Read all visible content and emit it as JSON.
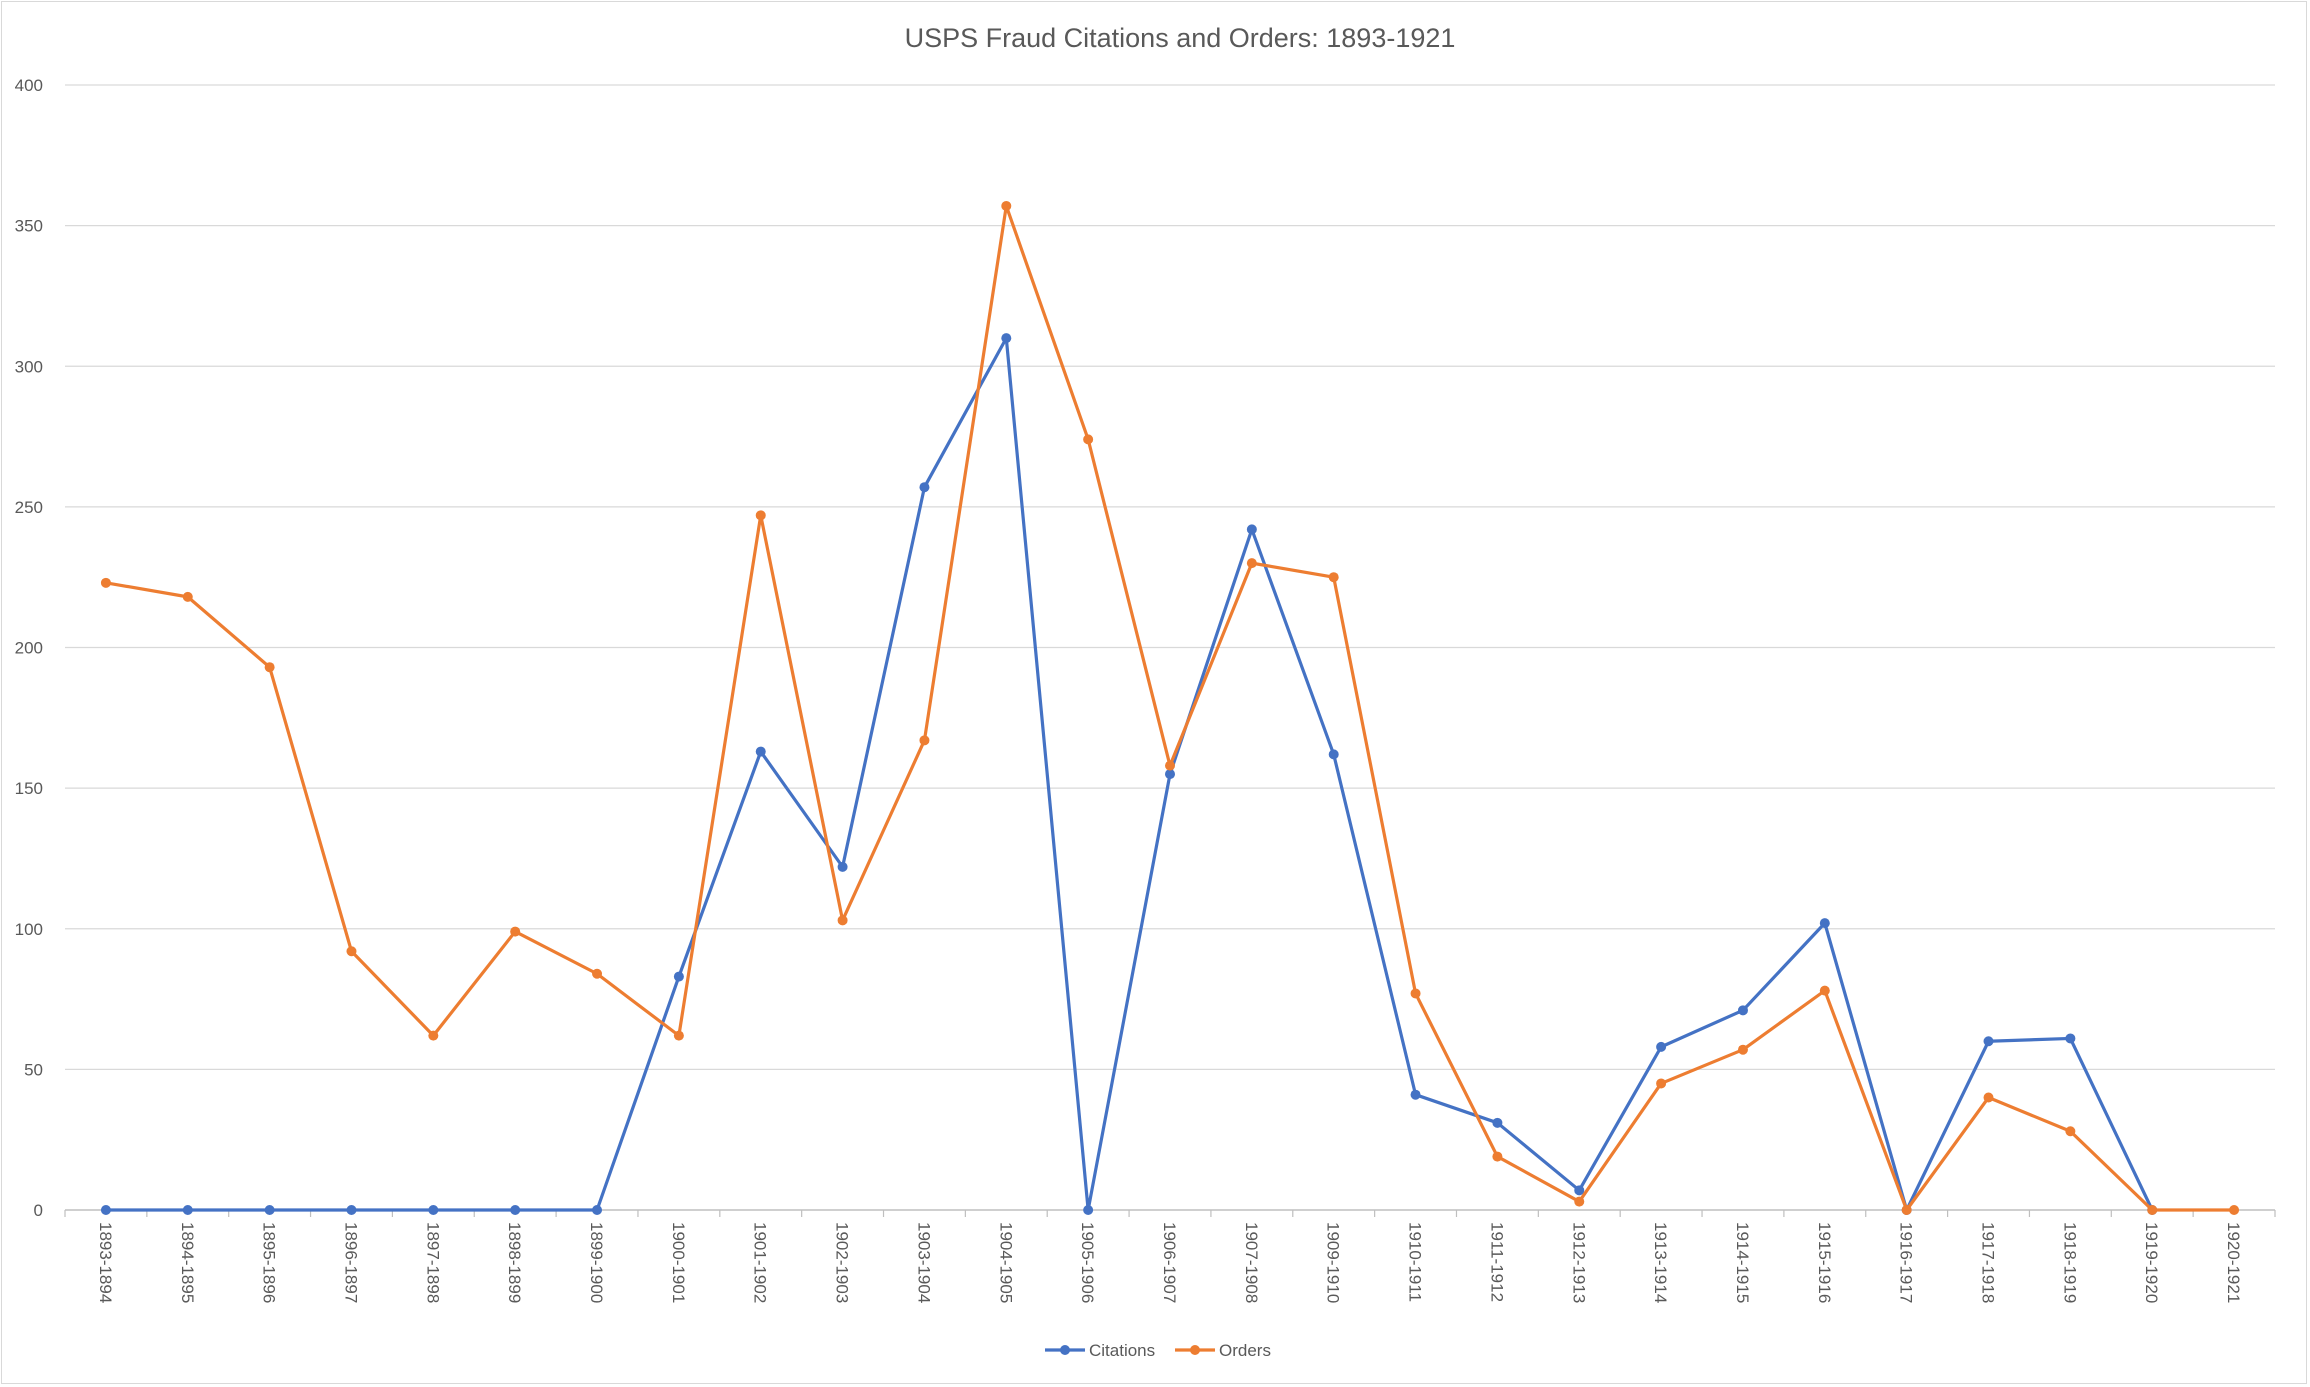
{
  "chart_data": {
    "type": "line",
    "title": "USPS Fraud Citations and Orders: 1893-1921",
    "xlabel": "",
    "ylabel": "",
    "ylim": [
      0,
      400
    ],
    "yticks": [
      "0",
      "50",
      "100",
      "150",
      "200",
      "250",
      "300",
      "350",
      "400"
    ],
    "categories": [
      "1893-1894",
      "1894-1895",
      "1895-1896",
      "1896-1897",
      "1897-1898",
      "1898-1899",
      "1899-1900",
      "1900-1901",
      "1901-1902",
      "1902-1903",
      "1903-1904",
      "1904-1905",
      "1905-1906",
      "1906-1907",
      "1907-1908",
      "1909-1910",
      "1910-1911",
      "1911-1912",
      "1912-1913",
      "1913-1914",
      "1914-1915",
      "1915-1916",
      "1916-1917",
      "1917-1918",
      "1918-1919",
      "1919-1920",
      "1920-1921"
    ],
    "series": [
      {
        "name": "Citations",
        "color": "#4472C4",
        "values": [
          0,
          0,
          0,
          0,
          0,
          0,
          0,
          83,
          163,
          122,
          257,
          310,
          0,
          155,
          242,
          162,
          41,
          31,
          7,
          58,
          71,
          102,
          0,
          60,
          61,
          0,
          null
        ]
      },
      {
        "name": "Orders",
        "color": "#ED7D31",
        "values": [
          223,
          218,
          193,
          92,
          62,
          99,
          84,
          62,
          247,
          103,
          167,
          357,
          274,
          158,
          230,
          225,
          77,
          19,
          3,
          45,
          57,
          78,
          0,
          40,
          28,
          0,
          0
        ]
      }
    ],
    "grid": true,
    "legend_position": "bottom"
  }
}
